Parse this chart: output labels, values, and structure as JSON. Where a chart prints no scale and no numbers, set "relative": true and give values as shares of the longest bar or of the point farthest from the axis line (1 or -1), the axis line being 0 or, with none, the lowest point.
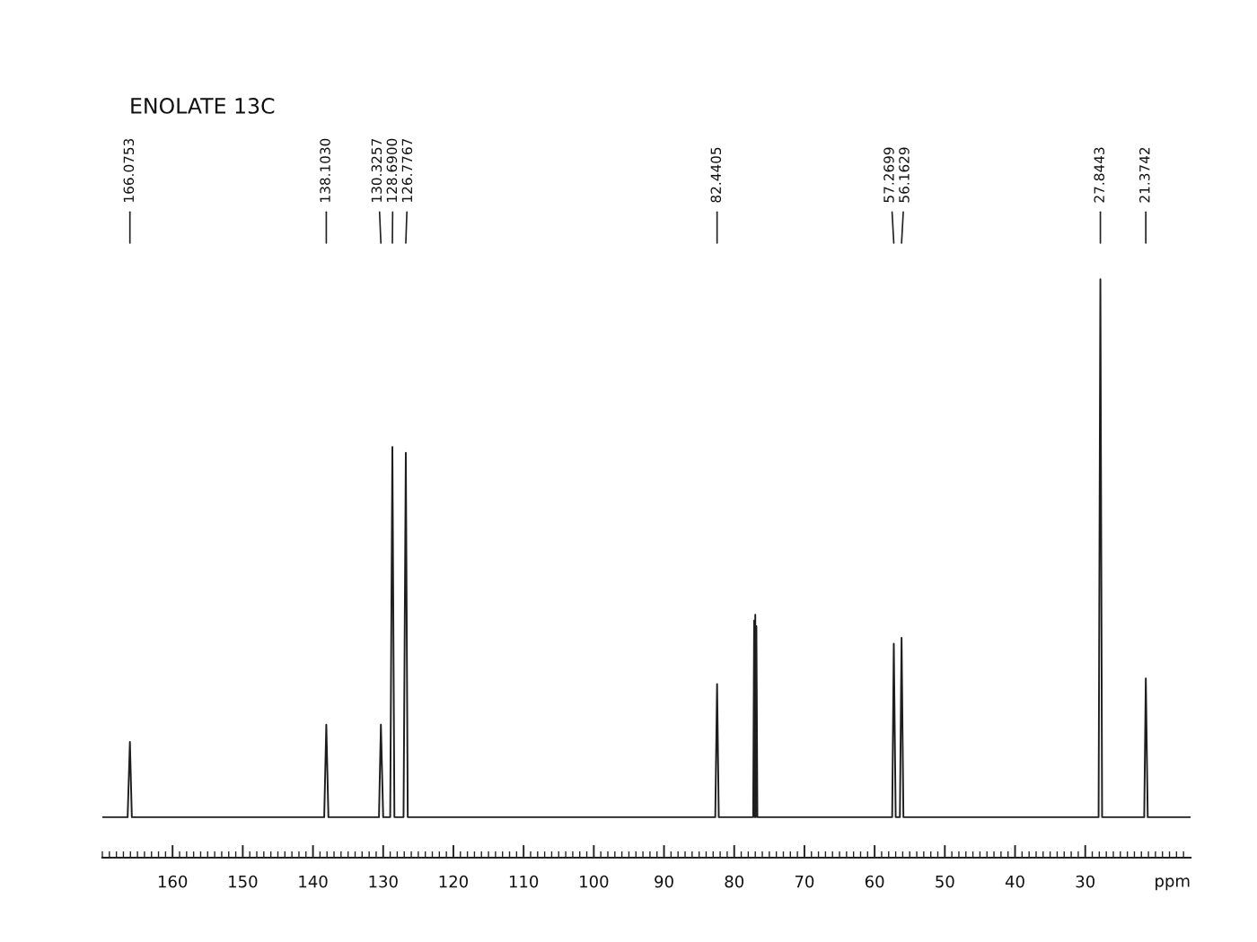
{
  "chart_data": {
    "type": "line",
    "title": "ENOLATE 13C",
    "xlabel": "ppm",
    "relative": true,
    "xlim": [
      170,
      15
    ],
    "xticks": [
      {
        "value": 170,
        "label": null
      },
      {
        "value": 169,
        "label": null
      },
      {
        "value": 168,
        "label": null
      },
      {
        "value": 167,
        "label": null
      },
      {
        "value": 166,
        "label": null
      },
      {
        "value": 165,
        "label": null
      },
      {
        "value": 164,
        "label": null
      },
      {
        "value": 163,
        "label": null
      },
      {
        "value": 162,
        "label": null
      },
      {
        "value": 161,
        "label": null
      },
      160,
      {
        "value": 159,
        "label": null
      },
      {
        "value": 158,
        "label": null
      },
      {
        "value": 157,
        "label": null
      },
      {
        "value": 156,
        "label": null
      },
      {
        "value": 155,
        "label": null
      },
      {
        "value": 154,
        "label": null
      },
      {
        "value": 153,
        "label": null
      },
      {
        "value": 152,
        "label": null
      },
      {
        "value": 151,
        "label": null
      },
      150,
      {
        "value": 149,
        "label": null
      },
      {
        "value": 148,
        "label": null
      },
      {
        "value": 147,
        "label": null
      },
      {
        "value": 146,
        "label": null
      },
      {
        "value": 145,
        "label": null
      },
      {
        "value": 144,
        "label": null
      },
      {
        "value": 143,
        "label": null
      },
      {
        "value": 142,
        "label": null
      },
      {
        "value": 141,
        "label": null
      },
      140,
      {
        "value": 139,
        "label": null
      },
      {
        "value": 138,
        "label": null
      },
      {
        "value": 137,
        "label": null
      },
      {
        "value": 136,
        "label": null
      },
      {
        "value": 135,
        "label": null
      },
      {
        "value": 134,
        "label": null
      },
      {
        "value": 133,
        "label": null
      },
      {
        "value": 132,
        "label": null
      },
      {
        "value": 131,
        "label": null
      },
      130,
      {
        "value": 129,
        "label": null
      },
      {
        "value": 128,
        "label": null
      },
      {
        "value": 127,
        "label": null
      },
      {
        "value": 126,
        "label": null
      },
      {
        "value": 125,
        "label": null
      },
      {
        "value": 124,
        "label": null
      },
      {
        "value": 123,
        "label": null
      },
      {
        "value": 122,
        "label": null
      },
      {
        "value": 121,
        "label": null
      },
      120,
      {
        "value": 119,
        "label": null
      },
      {
        "value": 118,
        "label": null
      },
      {
        "value": 117,
        "label": null
      },
      {
        "value": 116,
        "label": null
      },
      {
        "value": 115,
        "label": null
      },
      {
        "value": 114,
        "label": null
      },
      {
        "value": 113,
        "label": null
      },
      {
        "value": 112,
        "label": null
      },
      {
        "value": 111,
        "label": null
      },
      110,
      {
        "value": 109,
        "label": null
      },
      {
        "value": 108,
        "label": null
      },
      {
        "value": 107,
        "label": null
      },
      {
        "value": 106,
        "label": null
      },
      {
        "value": 105,
        "label": null
      },
      {
        "value": 104,
        "label": null
      },
      {
        "value": 103,
        "label": null
      },
      {
        "value": 102,
        "label": null
      },
      {
        "value": 101,
        "label": null
      },
      100,
      {
        "value": 99,
        "label": null
      },
      {
        "value": 98,
        "label": null
      },
      {
        "value": 97,
        "label": null
      },
      {
        "value": 96,
        "label": null
      },
      {
        "value": 95,
        "label": null
      },
      {
        "value": 94,
        "label": null
      },
      {
        "value": 93,
        "label": null
      },
      {
        "value": 92,
        "label": null
      },
      {
        "value": 91,
        "label": null
      },
      90,
      {
        "value": 89,
        "label": null
      },
      {
        "value": 88,
        "label": null
      },
      {
        "value": 87,
        "label": null
      },
      {
        "value": 86,
        "label": null
      },
      {
        "value": 85,
        "label": null
      },
      {
        "value": 84,
        "label": null
      },
      {
        "value": 83,
        "label": null
      },
      {
        "value": 82,
        "label": null
      },
      {
        "value": 81,
        "label": null
      },
      80,
      {
        "value": 79,
        "label": null
      },
      {
        "value": 78,
        "label": null
      },
      {
        "value": 77,
        "label": null
      },
      {
        "value": 76,
        "label": null
      },
      {
        "value": 75,
        "label": null
      },
      {
        "value": 74,
        "label": null
      },
      {
        "value": 73,
        "label": null
      },
      {
        "value": 72,
        "label": null
      },
      {
        "value": 71,
        "label": null
      },
      70,
      {
        "value": 69,
        "label": null
      },
      {
        "value": 68,
        "label": null
      },
      {
        "value": 67,
        "label": null
      },
      {
        "value": 66,
        "label": null
      },
      {
        "value": 65,
        "label": null
      },
      {
        "value": 64,
        "label": null
      },
      {
        "value": 63,
        "label": null
      },
      {
        "value": 62,
        "label": null
      },
      {
        "value": 61,
        "label": null
      },
      60,
      {
        "value": 59,
        "label": null
      },
      {
        "value": 58,
        "label": null
      },
      {
        "value": 57,
        "label": null
      },
      {
        "value": 56,
        "label": null
      },
      {
        "value": 55,
        "label": null
      },
      {
        "value": 54,
        "label": null
      },
      {
        "value": 53,
        "label": null
      },
      {
        "value": 52,
        "label": null
      },
      {
        "value": 51,
        "label": null
      },
      50,
      {
        "value": 49,
        "label": null
      },
      {
        "value": 48,
        "label": null
      },
      {
        "value": 47,
        "label": null
      },
      {
        "value": 46,
        "label": null
      },
      {
        "value": 45,
        "label": null
      },
      {
        "value": 44,
        "label": null
      },
      {
        "value": 43,
        "label": null
      },
      {
        "value": 42,
        "label": null
      },
      {
        "value": 41,
        "label": null
      },
      40,
      {
        "value": 39,
        "label": null
      },
      {
        "value": 38,
        "label": null
      },
      {
        "value": 37,
        "label": null
      },
      {
        "value": 36,
        "label": null
      },
      {
        "value": 35,
        "label": null
      },
      {
        "value": 34,
        "label": null
      },
      {
        "value": 33,
        "label": null
      },
      {
        "value": 32,
        "label": null
      },
      {
        "value": 31,
        "label": null
      },
      30,
      {
        "value": 29,
        "label": null
      },
      {
        "value": 28,
        "label": null
      },
      {
        "value": 27,
        "label": null
      },
      {
        "value": 26,
        "label": null
      },
      {
        "value": 25,
        "label": null
      },
      {
        "value": 24,
        "label": null
      },
      {
        "value": 23,
        "label": null
      },
      {
        "value": 22,
        "label": null
      },
      {
        "value": 21,
        "label": null
      },
      {
        "value": 20,
        "label": null
      },
      {
        "value": 19,
        "label": null
      },
      {
        "value": 18,
        "label": null
      },
      {
        "value": 17,
        "label": null
      },
      {
        "value": 16,
        "label": null
      }
    ],
    "series": [
      {
        "color": "#1e1e1e",
        "x": [
          170,
          166.4,
          166.0753,
          165.8,
          138.4,
          138.103,
          137.8,
          130.6,
          130.3257,
          130.0,
          129.0,
          128.69,
          128.4,
          127.1,
          126.7767,
          126.5,
          82.7,
          82.4405,
          82.2,
          77.3,
          77.16,
          77.08,
          77.0,
          76.92,
          76.84,
          76.7,
          57.5,
          57.2699,
          57.0,
          56.4,
          56.1629,
          55.9,
          28.1,
          27.8443,
          27.6,
          21.6,
          21.3742,
          21.1,
          15
        ],
        "values": [
          0.07,
          0.07,
          0.2,
          0.07,
          0.07,
          0.23,
          0.07,
          0.07,
          0.23,
          0.07,
          0.07,
          0.71,
          0.07,
          0.07,
          0.7,
          0.07,
          0.07,
          0.3,
          0.07,
          0.07,
          0.41,
          0.07,
          0.42,
          0.07,
          0.4,
          0.07,
          0.07,
          0.37,
          0.07,
          0.07,
          0.38,
          0.07,
          0.07,
          1,
          0.07,
          0.07,
          0.31,
          0.07,
          0.07
        ]
      }
    ],
    "annotations": [
      {
        "text": "166.0753",
        "x": 166.0753
      },
      {
        "text": "138.1030",
        "x": 138.103
      },
      {
        "text": "130.3257",
        "x": 130.3257
      },
      {
        "text": "128.6900",
        "x": 128.69
      },
      {
        "text": "126.7767",
        "x": 126.7767
      },
      {
        "text": "82.4405",
        "x": 82.4405
      },
      {
        "text": "57.2699",
        "x": 57.2699
      },
      {
        "text": "56.1629",
        "x": 56.1629
      },
      {
        "text": "27.8443",
        "x": 27.8443
      },
      {
        "text": "21.3742",
        "x": 21.3742
      }
    ]
  }
}
